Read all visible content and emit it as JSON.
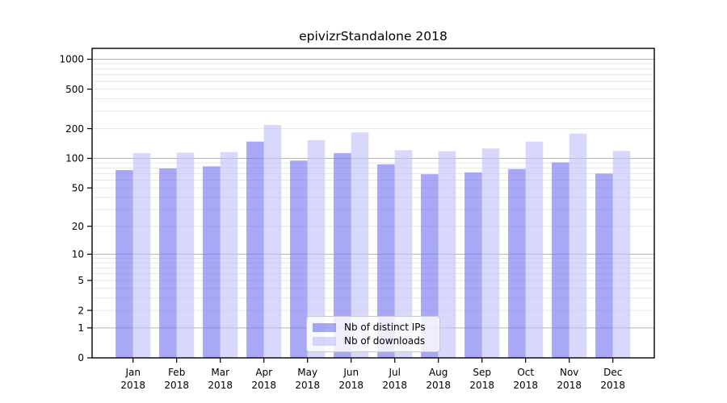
{
  "chart_data": {
    "type": "bar",
    "title": "epivizrStandalone 2018",
    "categories": [
      "Jan",
      "Feb",
      "Mar",
      "Apr",
      "May",
      "Jun",
      "Jul",
      "Aug",
      "Sep",
      "Oct",
      "Nov",
      "Dec"
    ],
    "year_label": "2018",
    "series": [
      {
        "name": "Nb of distinct IPs",
        "color": "#7979f3",
        "values": [
          76,
          79,
          83,
          148,
          95,
          113,
          87,
          69,
          72,
          78,
          91,
          70
        ]
      },
      {
        "name": "Nb of downloads",
        "color": "#c3c3fa",
        "values": [
          113,
          114,
          116,
          218,
          153,
          183,
          121,
          118,
          126,
          148,
          178,
          119
        ]
      }
    ],
    "fill_opacity": 0.65,
    "scale": "log1p",
    "y_ticks": [
      1000,
      500,
      200,
      100,
      50,
      20,
      10,
      5,
      2,
      1,
      0
    ],
    "ylim": [
      0,
      1286
    ],
    "grid": true,
    "grid_major_color": "#b3b3b3",
    "grid_minor_color": "#e7e7e7",
    "axis_color": "#000000",
    "background_color": "#ffffff",
    "legend_position": "lower center",
    "xlabel": "",
    "ylabel": ""
  }
}
